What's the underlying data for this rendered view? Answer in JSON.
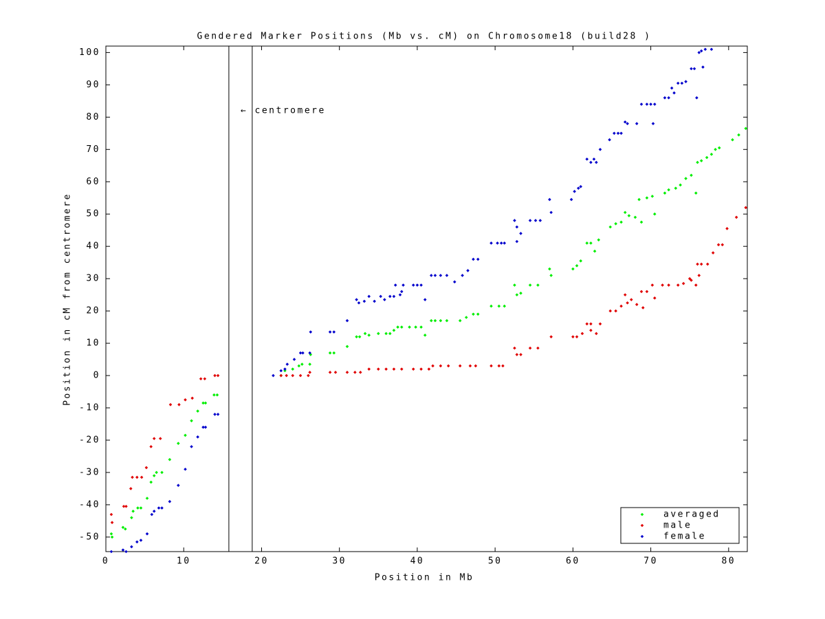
{
  "chart_data": {
    "type": "scatter",
    "title": "Gendered Marker Positions (Mb vs. cM) on Chromosome18 (build28 )",
    "x_label": "Position in Mb",
    "y_label": "Position in cM from centromere",
    "xlim": [
      0,
      82.4
    ],
    "ylim": [
      -54.5,
      102
    ],
    "xticks": [
      0,
      10,
      20,
      30,
      40,
      50,
      60,
      70,
      80
    ],
    "yticks": [
      -50,
      -40,
      -30,
      -20,
      -10,
      0,
      10,
      20,
      30,
      40,
      50,
      60,
      70,
      80,
      90,
      100
    ],
    "centromere_x": [
      15.8,
      18.8
    ],
    "annotations": [
      {
        "text": "← centromere",
        "x": 17.3,
        "y": 82
      }
    ],
    "legend": "lower right",
    "series": [
      {
        "name": "averaged",
        "color": "#00ee00",
        "x": [
          0.7,
          0.8,
          2.2,
          2.5,
          3.3,
          3.5,
          4.1,
          4.5,
          5.3,
          5.8,
          6.2,
          6.5,
          7.2,
          8.2,
          9.3,
          10.2,
          11.0,
          11.8,
          12.5,
          12.8,
          13.9,
          14.3,
          22.5,
          23.0,
          24,
          24.8,
          25.2,
          26.2,
          26.3,
          28.8,
          29.3,
          31,
          32.2,
          32.6,
          33.3,
          33.8,
          35,
          36,
          36.5,
          37,
          37.5,
          38,
          39,
          39.8,
          40.5,
          41,
          41.8,
          42.3,
          43,
          43.8,
          45.5,
          46.3,
          47.2,
          47.8,
          49.5,
          50.5,
          51.2,
          52.5,
          52.8,
          53.3,
          54.5,
          55.5,
          57,
          57.2,
          60,
          60.5,
          61,
          61.8,
          62.3,
          62.8,
          63.3,
          64.8,
          65.5,
          66.2,
          66.7,
          67.2,
          68,
          68.5,
          68.8,
          69.5,
          70.2,
          70.5,
          71.8,
          72.3,
          73.2,
          73.8,
          74.5,
          75.2,
          75.8,
          76,
          76.5,
          77.2,
          77.8,
          78.3,
          78.8,
          80.5,
          81.3,
          82.2
        ],
        "values": [
          -49,
          -50,
          -47,
          -47.5,
          -44,
          -42,
          -41,
          -41,
          -38,
          -33,
          -31,
          -30,
          -30,
          -26,
          -21,
          -18.5,
          -14,
          -11,
          -8.5,
          -8.5,
          -6,
          -6,
          0,
          1.5,
          2,
          3,
          3.5,
          3.5,
          6.5,
          7,
          7,
          9,
          12,
          12,
          13,
          12.5,
          13,
          13,
          13,
          14,
          15,
          15,
          15,
          15,
          15,
          12.5,
          17,
          17,
          17,
          17,
          17,
          18,
          19,
          19,
          21.5,
          21.5,
          21.5,
          28,
          25,
          25.5,
          28,
          28,
          33,
          31,
          33,
          34,
          35.5,
          41,
          41,
          38.5,
          42,
          46,
          47,
          47.5,
          50.5,
          49.5,
          49,
          54.5,
          47.5,
          55,
          55.5,
          50,
          56.5,
          57.5,
          58,
          59,
          61,
          62,
          56.5,
          66,
          66.5,
          67.5,
          68.5,
          70,
          70.5,
          73,
          74.5,
          76.5
        ]
      },
      {
        "name": "male",
        "color": "#e00000",
        "x": [
          0.7,
          0.8,
          2.3,
          2.6,
          3.2,
          3.4,
          4.0,
          4.6,
          5.2,
          5.8,
          6.2,
          7.0,
          8.3,
          9.4,
          10.2,
          11.1,
          12.2,
          12.7,
          14.0,
          14.4,
          22.5,
          23.2,
          24,
          25,
          26,
          26.2,
          28.8,
          29.5,
          31,
          32,
          32.7,
          33.8,
          35,
          36,
          37,
          38,
          39.5,
          40.5,
          41.5,
          42,
          43,
          44,
          45.5,
          46.8,
          47.5,
          49.5,
          50.5,
          51,
          52.5,
          52.8,
          53.3,
          54.5,
          55.5,
          57.2,
          60,
          60.5,
          61.2,
          61.8,
          62.3,
          62.3,
          63,
          63.5,
          64.8,
          65.5,
          66.2,
          66.7,
          67,
          67.5,
          68.2,
          68.8,
          69,
          69.5,
          70.2,
          70.5,
          71.5,
          72.3,
          73.5,
          74.2,
          75,
          75.2,
          75.8,
          76,
          76.5,
          76.2,
          77.3,
          78,
          78.7,
          79.2,
          79.8,
          81,
          82.2
        ],
        "values": [
          -43,
          -45.5,
          -40.5,
          -40.5,
          -35,
          -31.5,
          -31.5,
          -31.5,
          -28.5,
          -22,
          -19.5,
          -19.5,
          -9,
          -9,
          -7.5,
          -7,
          -1,
          -1,
          0,
          0,
          0,
          0,
          0,
          0,
          0,
          1,
          1,
          1,
          1,
          1,
          1,
          2,
          2,
          2,
          2,
          2,
          2,
          2,
          2,
          3,
          3,
          3,
          3,
          3,
          3,
          3,
          3,
          3,
          8.5,
          6.5,
          6.5,
          8.5,
          8.5,
          12,
          12,
          12,
          13,
          16,
          16,
          14,
          13,
          16,
          20,
          20,
          21.5,
          25,
          22.5,
          23.5,
          22,
          26,
          21,
          26,
          28,
          24,
          28,
          28,
          28,
          28.5,
          30,
          29.5,
          28,
          34.5,
          34.5,
          31,
          34.5,
          38,
          40.5,
          40.5,
          45.5,
          49,
          52
        ]
      },
      {
        "name": "female",
        "color": "#0000cc",
        "x": [
          0.7,
          2.2,
          2.6,
          3.3,
          4.0,
          4.5,
          5.3,
          5.9,
          6.2,
          6.8,
          7.2,
          8.2,
          9.3,
          10.2,
          11.0,
          11.8,
          12.5,
          12.8,
          14.0,
          14.4,
          21.5,
          22.5,
          23,
          23.3,
          24.2,
          25,
          25.3,
          26.2,
          26.3,
          28.8,
          29.3,
          31,
          32.2,
          32.5,
          33.2,
          33.8,
          34.5,
          35.3,
          35.8,
          36.5,
          37,
          37.2,
          37.8,
          38,
          38.2,
          39.5,
          40,
          40.5,
          41,
          41.8,
          42.3,
          43,
          43.8,
          44.8,
          45.8,
          46.5,
          47.2,
          47.8,
          49.5,
          50.3,
          50.8,
          51.2,
          52.5,
          52.8,
          52.8,
          53.3,
          54.5,
          55.2,
          55.8,
          57,
          57.2,
          59.8,
          60.2,
          60.7,
          61,
          61.8,
          62.3,
          62.7,
          63,
          63.5,
          64.7,
          65.3,
          65.8,
          66.2,
          66.7,
          67,
          68.2,
          68.8,
          69.5,
          70,
          70.3,
          70.5,
          71.8,
          72.3,
          72.7,
          73,
          73.5,
          74,
          74.5,
          75.2,
          75.6,
          75.9,
          76.2,
          76.5,
          76.7,
          77,
          77.8
        ],
        "values": [
          -54.5,
          -54,
          -54.5,
          -53,
          -51.5,
          -51,
          -49,
          -43,
          -42,
          -41,
          -41,
          -39,
          -34,
          -29,
          -22,
          -19,
          -16,
          -16,
          -12,
          -12,
          0,
          1.5,
          2,
          3.5,
          5,
          7,
          7,
          7,
          13.5,
          13.5,
          13.5,
          17,
          23.5,
          22.5,
          23,
          24.5,
          23,
          24.5,
          23.5,
          24.5,
          24.5,
          28,
          25,
          26,
          28,
          28,
          28,
          28,
          23.5,
          31,
          31,
          31,
          31,
          29,
          31,
          32.5,
          36,
          36,
          41,
          41,
          41,
          41,
          48,
          41.5,
          46,
          44,
          48,
          48,
          48,
          54.5,
          50.5,
          54.5,
          57,
          58,
          58.5,
          67,
          66,
          67,
          66,
          70,
          73,
          75,
          75,
          75,
          78.5,
          78,
          78,
          84,
          84,
          84,
          78,
          84,
          86,
          86,
          89,
          87.5,
          90.5,
          90.5,
          91,
          95,
          95,
          86,
          100,
          100.5,
          95.5,
          101,
          101
        ]
      }
    ]
  }
}
